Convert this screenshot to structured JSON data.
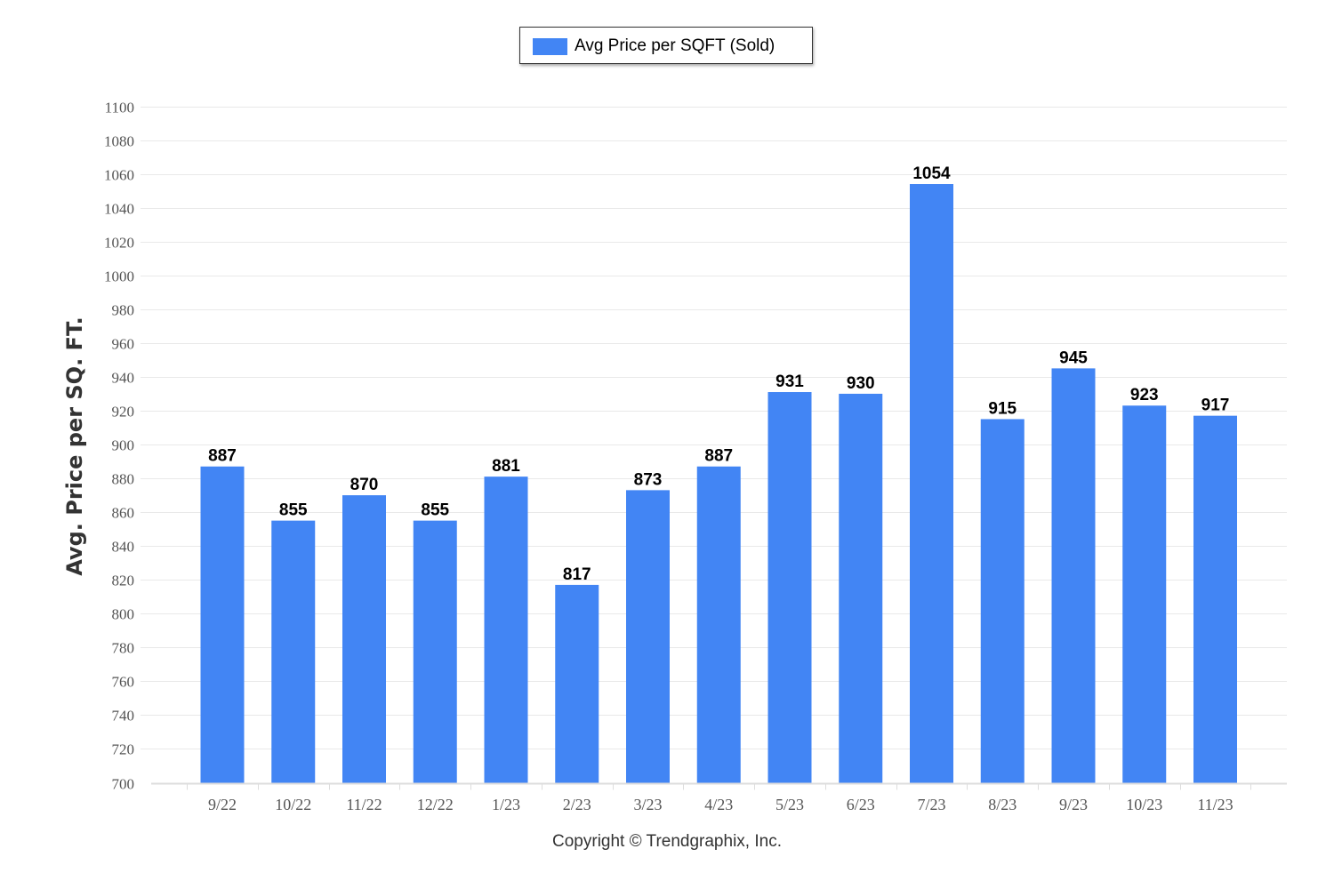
{
  "chart_data": {
    "type": "bar",
    "categories": [
      "9/22",
      "10/22",
      "11/22",
      "12/22",
      "1/23",
      "2/23",
      "3/23",
      "4/23",
      "5/23",
      "6/23",
      "7/23",
      "8/23",
      "9/23",
      "10/23",
      "11/23"
    ],
    "series": [
      {
        "name": "Avg Price per SQFT (Sold)",
        "values": [
          887,
          855,
          870,
          855,
          881,
          817,
          873,
          887,
          931,
          930,
          1054,
          915,
          945,
          923,
          917
        ],
        "color": "#4285f4"
      }
    ],
    "ylabel": "Avg. Price per SQ. FT.",
    "xlabel": "",
    "ylim": [
      700,
      1100
    ],
    "yticks": [
      700,
      720,
      740,
      760,
      780,
      800,
      820,
      840,
      860,
      880,
      900,
      920,
      940,
      960,
      980,
      1000,
      1020,
      1040,
      1060,
      1080,
      1100
    ],
    "grid": true,
    "legend_position": "top-center",
    "data_labels": true
  },
  "footer": {
    "copyright": "Copyright © Trendgraphix, Inc."
  }
}
